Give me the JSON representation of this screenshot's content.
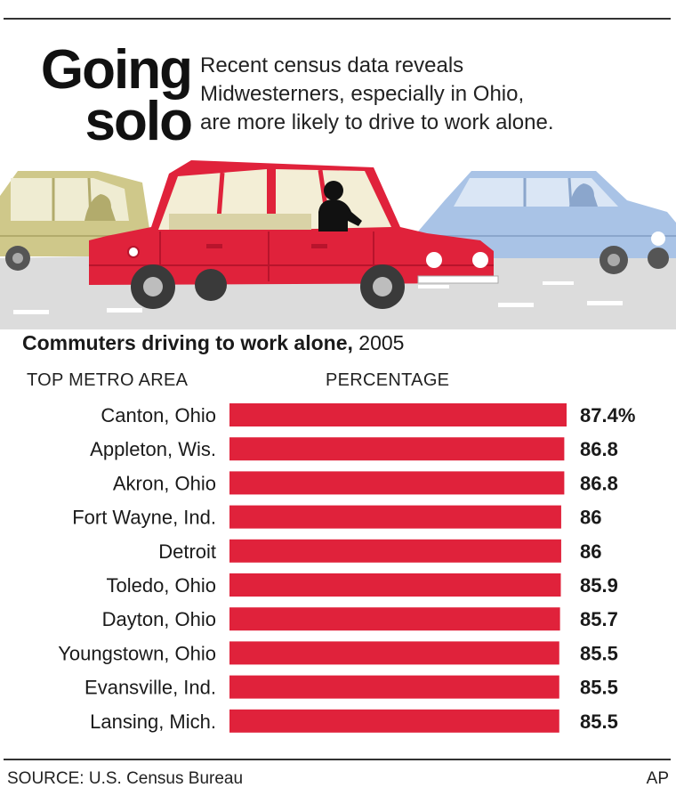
{
  "headline": [
    "Going",
    "solo"
  ],
  "dek": [
    "Recent census data reveals",
    "Midwesterners, especially in Ohio,",
    "are more likely to drive to work alone."
  ],
  "chart_title": {
    "bold": "Commuters driving to work alone,",
    "year": " 2005"
  },
  "columns": {
    "area": "TOP METRO AREA",
    "percentage": "PERCENTAGE"
  },
  "chart_data": {
    "type": "bar",
    "orientation": "horizontal",
    "categories": [
      "Canton, Ohio",
      "Appleton, Wis.",
      "Akron, Ohio",
      "Fort Wayne, Ind.",
      "Detroit",
      "Toledo, Ohio",
      "Dayton, Ohio",
      "Youngstown, Ohio",
      "Evansville, Ind.",
      "Lansing, Mich."
    ],
    "values": [
      87.4,
      86.8,
      86.8,
      86,
      86,
      85.9,
      85.7,
      85.5,
      85.5,
      85.5
    ],
    "value_labels": [
      "87.4%",
      "86.8",
      "86.8",
      "86",
      "86",
      "85.9",
      "85.7",
      "85.5",
      "85.5",
      "85.5"
    ],
    "bar_color": "#e0223b",
    "grid": false,
    "legend": "none"
  },
  "illustration": {
    "icons": [
      "tan-car-icon",
      "red-car-icon",
      "blue-car-icon",
      "driver-silhouette-icon",
      "road-icon"
    ],
    "colors": {
      "red_car": "#e0223b",
      "tan_car": "#cfc88a",
      "blue_car": "#a9c3e6",
      "road": "#dcdcdc",
      "lane": "#ffffff"
    }
  },
  "footer": {
    "source": "SOURCE: U.S. Census Bureau",
    "credit": "AP"
  }
}
